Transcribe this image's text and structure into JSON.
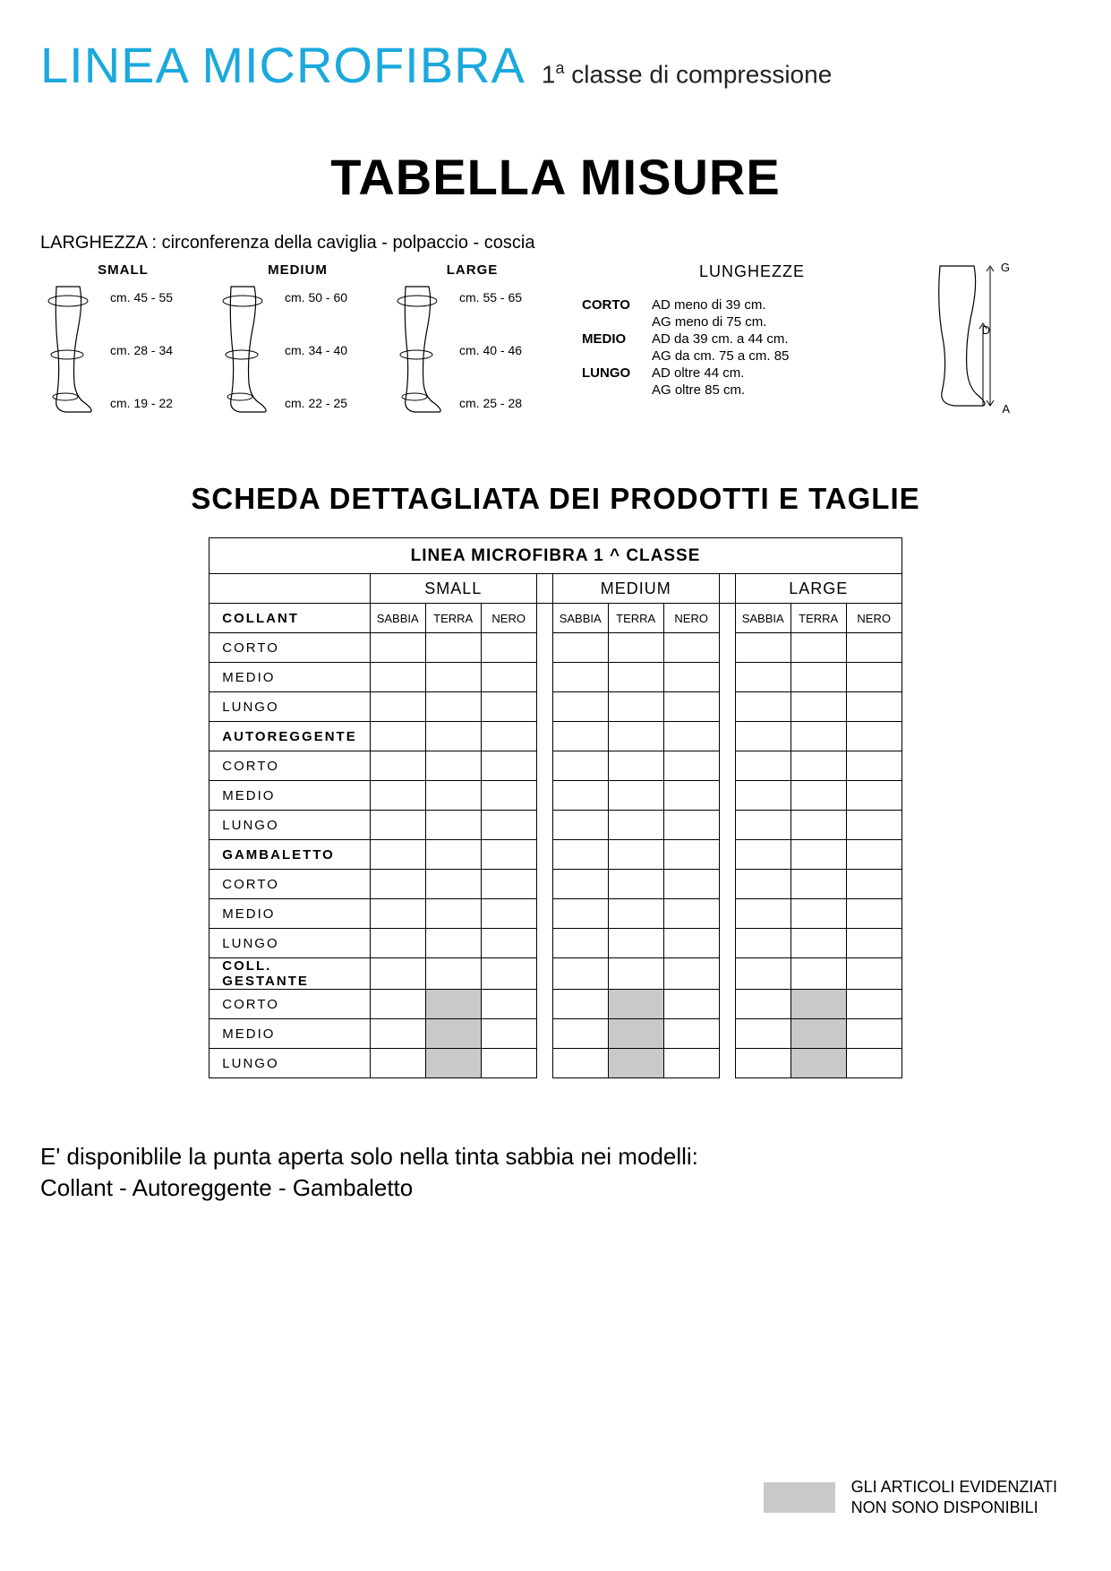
{
  "colors": {
    "brand_blue": "#1ba9dd",
    "text": "#000000",
    "shaded": "#c9c9c9",
    "background": "#ffffff"
  },
  "header": {
    "brand": "LINEA MICROFIBRA",
    "sub_pre": "1",
    "sub_sup": "a",
    "sub_post": " classe di compressione"
  },
  "section1_title": "TABELLA MISURE",
  "larghezza_label": "LARGHEZZA : circonferenza della caviglia -  polpaccio  - coscia",
  "sizes": [
    {
      "name": "SMALL",
      "thigh": "cm. 45 - 55",
      "calf": "cm. 28 - 34",
      "ankle": "cm. 19 - 22"
    },
    {
      "name": "MEDIUM",
      "thigh": "cm. 50 - 60",
      "calf": "cm. 34 - 40",
      "ankle": "cm. 22 - 25"
    },
    {
      "name": "LARGE",
      "thigh": "cm. 55 - 65",
      "calf": "cm. 40 - 46",
      "ankle": "cm. 25 - 28"
    }
  ],
  "lunghezze": {
    "title": "LUNGHEZZE",
    "rows": [
      {
        "k": "CORTO",
        "v1": "AD  meno di 39 cm.",
        "v2": "AG  meno di 75 cm."
      },
      {
        "k": "MEDIO",
        "v1": "AD  da 39 cm. a 44 cm.",
        "v2": "AG  da cm. 75 a cm. 85"
      },
      {
        "k": "LUNGO",
        "v1": "AD  oltre 44 cm.",
        "v2": "AG  oltre 85 cm."
      }
    ],
    "side_leg_labels": {
      "top": "G",
      "mid": "D",
      "bot": "A"
    }
  },
  "section2_title": "SCHEDA DETTAGLIATA DEI PRODOTTI E TAGLIE",
  "product_table": {
    "header_main": "LINEA MICROFIBRA 1 ^  CLASSE",
    "size_headers": [
      "SMALL",
      "MEDIUM",
      "LARGE"
    ],
    "color_headers": [
      "SABBIA",
      "TERRA",
      "NERO"
    ],
    "groups": [
      {
        "title": "COLLANT",
        "lengths": [
          "CORTO",
          "MEDIO",
          "LUNGO"
        ],
        "shaded_cols": []
      },
      {
        "title": "AUTOREGGENTE",
        "lengths": [
          "CORTO",
          "MEDIO",
          "LUNGO"
        ],
        "shaded_cols": []
      },
      {
        "title": "GAMBALETTO",
        "lengths": [
          "CORTO",
          "MEDIO",
          "LUNGO"
        ],
        "shaded_cols": []
      },
      {
        "title": "COLL. GESTANTE",
        "lengths": [
          "CORTO",
          "MEDIO",
          "LUNGO"
        ],
        "shaded_cols": [
          1
        ]
      }
    ]
  },
  "footer_note_line1": "E' disponiblile la punta aperta solo nella tinta sabbia nei modelli:",
  "footer_note_line2": "Collant - Autoreggente - Gambaletto",
  "legend_line1": "GLI ARTICOLI EVIDENZIATI",
  "legend_line2": "NON SONO DISPONIBILI"
}
